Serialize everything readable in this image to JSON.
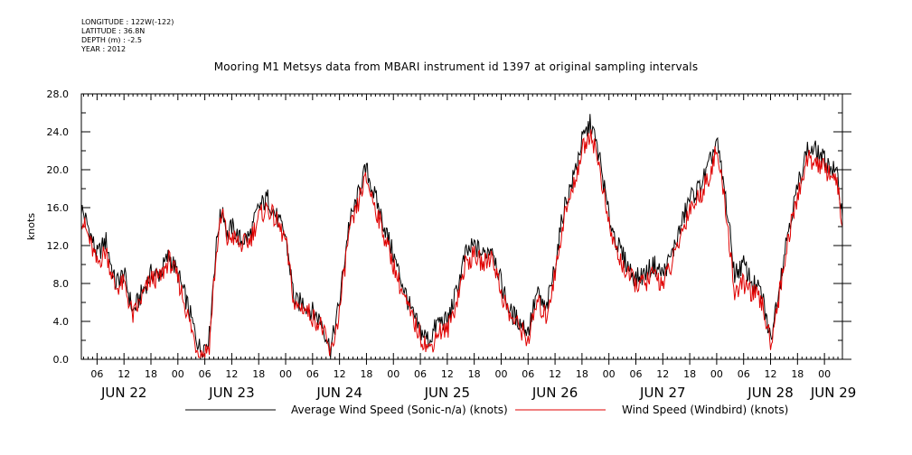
{
  "metadata": [
    "LONGITUDE : 122W(-122)",
    "LATITUDE : 36.8N",
    "DEPTH (m) : -2.5",
    "YEAR : 2012"
  ],
  "colors": {
    "avg": "#000000",
    "windbird": "#e00000",
    "axis": "#000000"
  },
  "chart_data": {
    "type": "line",
    "title": "Mooring M1 Metsys data from MBARI instrument id 1397 at original sampling intervals",
    "ylabel": "knots",
    "xlabel": "",
    "ylim": [
      0,
      28
    ],
    "yticks": [
      0,
      4,
      8,
      12,
      16,
      20,
      24,
      28
    ],
    "ytick_labels": [
      "0.0",
      "4.0",
      "8.0",
      "12.0",
      "16.0",
      "20.0",
      "24.0",
      "28.0"
    ],
    "x_unit": "hours since 2012-06-22 00:00",
    "xlim": [
      2.5,
      172
    ],
    "hour_ticks": [
      6,
      12,
      18,
      24,
      30,
      36,
      42,
      48,
      54,
      60,
      66,
      72,
      78,
      84,
      90,
      96,
      102,
      108,
      114,
      120,
      126,
      132,
      138,
      144,
      150,
      156,
      162,
      168
    ],
    "hour_labels": [
      "06",
      "12",
      "18",
      "00",
      "06",
      "12",
      "18",
      "00",
      "06",
      "12",
      "18",
      "00",
      "06",
      "12",
      "18",
      "00",
      "06",
      "12",
      "18",
      "00",
      "06",
      "12",
      "18",
      "00",
      "06",
      "12",
      "18",
      "00"
    ],
    "day_labels": [
      {
        "label": "JUN 22",
        "hour": 12
      },
      {
        "label": "JUN 23",
        "hour": 36
      },
      {
        "label": "JUN 24",
        "hour": 60
      },
      {
        "label": "JUN 25",
        "hour": 84
      },
      {
        "label": "JUN 26",
        "hour": 108
      },
      {
        "label": "JUN 27",
        "hour": 132
      },
      {
        "label": "JUN 28",
        "hour": 156
      },
      {
        "label": "JUN 29",
        "hour": 170
      }
    ],
    "series": [
      {
        "name": "Average Wind Speed (Sonic-n/a) (knots)",
        "color": "#000000",
        "x": [
          2.5,
          4,
          6,
          8,
          10,
          12,
          14,
          16,
          18,
          20,
          22,
          24,
          26,
          28,
          29,
          30,
          31,
          32,
          33,
          34,
          35,
          36,
          38,
          40,
          42,
          44,
          46,
          48,
          50,
          52,
          54,
          56,
          58,
          60,
          62,
          64,
          65,
          66,
          68,
          70,
          72,
          74,
          76,
          78,
          80,
          82,
          84,
          86,
          88,
          90,
          92,
          94,
          96,
          98,
          100,
          102,
          104,
          106,
          108,
          110,
          112,
          114,
          116,
          118,
          120,
          122,
          124,
          126,
          128,
          130,
          132,
          134,
          136,
          138,
          140,
          142,
          144,
          146,
          148,
          150,
          152,
          154,
          156,
          158,
          160,
          162,
          164,
          166,
          168,
          170,
          171,
          172
        ],
        "y": [
          16,
          14,
          11,
          12.5,
          8,
          9,
          5,
          7,
          9,
          9,
          11,
          9,
          6,
          2.5,
          1,
          1.5,
          2.5,
          9,
          14,
          16,
          13,
          14,
          12.5,
          13,
          16,
          17,
          15,
          13,
          6,
          6,
          5,
          4,
          1,
          6,
          14,
          17,
          19,
          20,
          17,
          14,
          11,
          8,
          5,
          3,
          2,
          4,
          4,
          7,
          11,
          12,
          11,
          12,
          8,
          5,
          4,
          3,
          7,
          5,
          10,
          16,
          19,
          23,
          25,
          21,
          15,
          12,
          10,
          8.5,
          9,
          10,
          9,
          11,
          14,
          17,
          18,
          20,
          23,
          17,
          9,
          10,
          8,
          7,
          2,
          8,
          14,
          18,
          22,
          22,
          21,
          20,
          19,
          15
        ]
      },
      {
        "name": "Wind Speed (Windbird) (knots)",
        "color": "#e00000",
        "x": [
          2.5,
          4,
          6,
          8,
          10,
          12,
          14,
          16,
          18,
          20,
          22,
          24,
          26,
          28,
          29,
          30,
          31,
          32,
          33,
          34,
          35,
          36,
          38,
          40,
          42,
          44,
          46,
          48,
          50,
          52,
          54,
          56,
          58,
          60,
          62,
          64,
          65,
          66,
          68,
          70,
          72,
          74,
          76,
          78,
          80,
          82,
          84,
          86,
          88,
          90,
          92,
          94,
          96,
          98,
          100,
          102,
          104,
          106,
          108,
          110,
          112,
          114,
          116,
          118,
          120,
          122,
          124,
          126,
          128,
          130,
          132,
          134,
          136,
          138,
          140,
          142,
          144,
          146,
          148,
          150,
          152,
          154,
          156,
          158,
          160,
          162,
          164,
          166,
          168,
          170,
          171,
          172
        ],
        "y": [
          15,
          13,
          10,
          11.5,
          7.5,
          8,
          4.5,
          6.5,
          8.5,
          8.5,
          10.5,
          8.5,
          5,
          1.5,
          0.5,
          0.8,
          1.5,
          8,
          13,
          15.5,
          12.5,
          13,
          12,
          12.5,
          15,
          16,
          14.5,
          12.5,
          5.5,
          5.5,
          4.5,
          3.5,
          0.4,
          5,
          13,
          16,
          18,
          19,
          16,
          13,
          10,
          7,
          4.5,
          2.5,
          1,
          3,
          3,
          6,
          10,
          11,
          10,
          11,
          7,
          4.5,
          3.5,
          2,
          6,
          4.5,
          9,
          15,
          18,
          22,
          24,
          20,
          14,
          11,
          9,
          8,
          8,
          9,
          8,
          10,
          13,
          16,
          17,
          19,
          22,
          16,
          7,
          8,
          7,
          6,
          1.8,
          7,
          13,
          17,
          21,
          21,
          20,
          19.5,
          18,
          14
        ]
      }
    ],
    "legend_position": "bottom"
  }
}
